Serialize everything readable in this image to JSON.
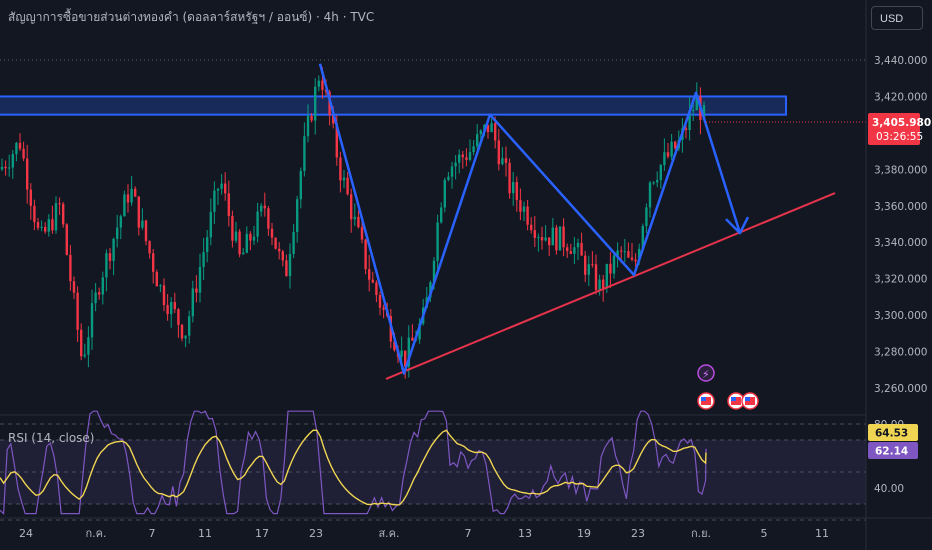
{
  "header": {
    "title": "สัญญาการซื้อขายส่วนต่างทองคำ (ดอลลาร์สหรัฐฯ / ออนซ์) · 4h · TVC",
    "currency_button": "USD"
  },
  "price_axis": {
    "ticks": [
      {
        "value": 3440,
        "label": "3,440.000"
      },
      {
        "value": 3420,
        "label": "3,420.000"
      },
      {
        "value": 3380,
        "label": "3,380.000"
      },
      {
        "value": 3360,
        "label": "3,360.000"
      },
      {
        "value": 3340,
        "label": "3,340.000"
      },
      {
        "value": 3320,
        "label": "3,320.000"
      },
      {
        "value": 3300,
        "label": "3,300.000"
      },
      {
        "value": 3280,
        "label": "3,280.000"
      },
      {
        "value": 3260,
        "label": "3,260.000"
      }
    ],
    "current_price": {
      "value": 3405.98,
      "label": "3,405.980",
      "countdown": "03:26:55",
      "color": "#f23645"
    }
  },
  "time_axis": {
    "labels": [
      "24",
      "ก.ค.",
      "7",
      "11",
      "17",
      "23",
      "ส.ค.",
      "7",
      "13",
      "19",
      "23",
      "ก.ย.",
      "5",
      "11"
    ]
  },
  "rsi_panel": {
    "title": "RSI (14, close)",
    "ticks": [
      {
        "value": 80,
        "label": "80.00"
      },
      {
        "value": 40,
        "label": "40.00"
      }
    ],
    "rsi_value": {
      "value": 64.53,
      "label": "64.53",
      "color": "#f0d552"
    },
    "rsi_ma_value": {
      "value": 62.14,
      "label": "62.14",
      "color": "#7e57c2"
    }
  },
  "colors": {
    "background": "#131722",
    "up_candle": "#089981",
    "down_candle": "#f23645",
    "pattern_line": "#2962ff",
    "trendline": "#e5334b",
    "resistance_zone": "#2962ff",
    "rsi_line": "#7e57c2",
    "rsi_ma": "#f0d552"
  },
  "chart_data": {
    "type": "candlestick",
    "timeframe": "4h",
    "y_axis_range": [
      3250,
      3450
    ],
    "key_points": [
      {
        "date": "ก.ค. 23",
        "price": 3438
      },
      {
        "date": "ส.ค. 1",
        "price": 3268
      },
      {
        "date": "ส.ค. 8",
        "price": 3410
      },
      {
        "date": "ส.ค. 22",
        "price": 3322
      },
      {
        "date": "ส.ค. 29",
        "price": 3422
      }
    ],
    "resistance_zone": {
      "low": 3410,
      "high": 3420
    },
    "projection_arrow": {
      "from": 3410,
      "to": 3345
    },
    "ascending_trendline": {
      "start_price": 3265,
      "end_price": 3367
    },
    "rsi": {
      "period": 14,
      "source": "close",
      "last": 64.53,
      "ma_last": 62.14,
      "range": [
        20,
        90
      ]
    }
  }
}
